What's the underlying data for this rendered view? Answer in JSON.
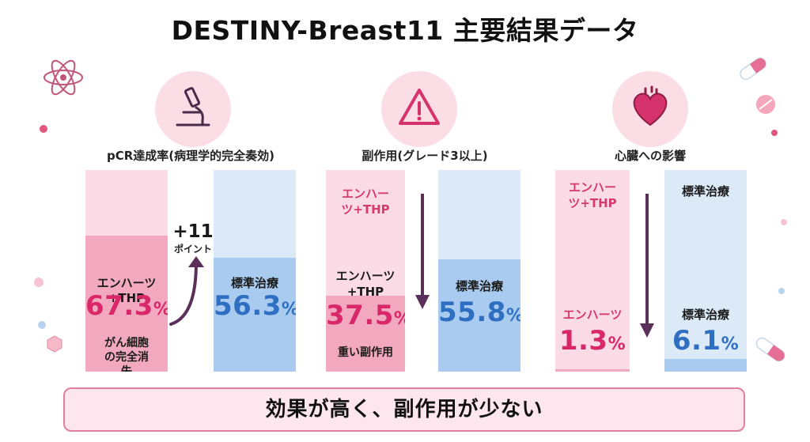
{
  "title": "DESTINY-Breast11 主要結果データ",
  "icons": {
    "panel1": "microscope-icon",
    "panel2": "warning-triangle-icon",
    "panel3": "heart-icon",
    "decor": [
      "atom-icon",
      "capsule-icon",
      "pill-icon"
    ]
  },
  "colors": {
    "pink_light": "#fbdce6",
    "pink": "#f2a9bf",
    "pink_text": "#d9286a",
    "blue_light": "#dceaf8",
    "blue": "#a9cbef",
    "blue_text": "#2f6fc2",
    "frame": "#e07ea0"
  },
  "chart_data": [
    {
      "type": "bar",
      "title": "pCR達成率(病理学的完全奏効)",
      "categories": [
        "エンハーツ+THP",
        "標準治療"
      ],
      "values": [
        67.3,
        56.3
      ],
      "unit": "%",
      "value_labels": [
        "67.3",
        "56.3"
      ],
      "ylim": [
        0,
        100
      ],
      "annotation": {
        "value": "+11",
        "label": "ポイント"
      },
      "note": "がん細胞の完全消失",
      "grid": false
    },
    {
      "type": "bar",
      "title": "副作用(グレード3以上)",
      "categories": [
        "エンハーツ+THP",
        "標準治療"
      ],
      "values": [
        37.5,
        55.8
      ],
      "unit": "%",
      "value_labels": [
        "37.5",
        "55.8"
      ],
      "ylim": [
        0,
        100
      ],
      "top_label": "エンハーツ+THP",
      "note": "重い副作用",
      "grid": false
    },
    {
      "type": "bar",
      "title": "心臓への影響",
      "categories": [
        "エンハーツ",
        "標準治療"
      ],
      "values": [
        1.3,
        6.1
      ],
      "unit": "%",
      "value_labels": [
        "1.3",
        "6.1"
      ],
      "ylim": [
        0,
        100
      ],
      "top_labels": [
        "エンハーツ+THP",
        "標準治療"
      ],
      "grid": false
    }
  ],
  "conclusion": "効果が高く、副作用が少ない"
}
